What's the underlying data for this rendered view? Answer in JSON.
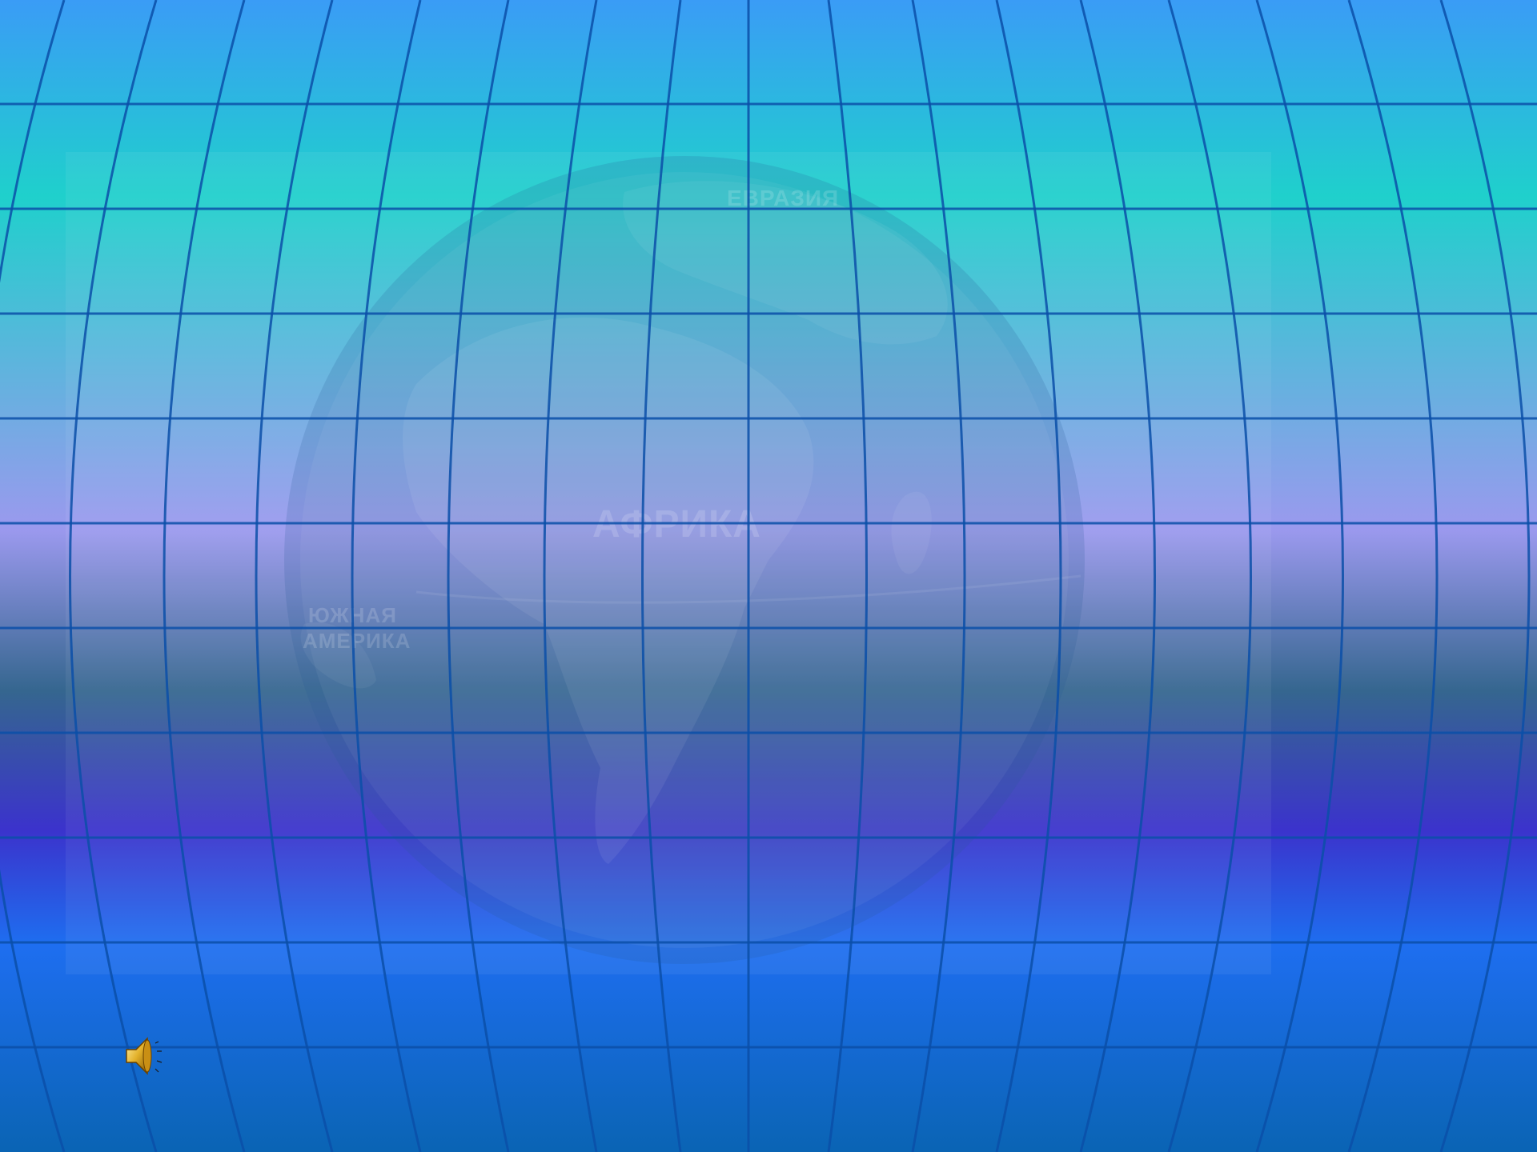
{
  "slide": {
    "labels": {
      "eurasia": "ЕВРАЗИЯ",
      "africa": "АФРИКА",
      "south_america_line1": "ЮЖНАЯ",
      "south_america_line2": "АМЕРИКА"
    },
    "audio_icon": "speaker-icon"
  },
  "colors": {
    "top": "#3a9cf6",
    "teal": "#1fd0cc",
    "lavender": "#9b99ee",
    "slate": "#35668f",
    "indigo": "#3b33cc",
    "blue": "#1e6ef0",
    "bottom": "#0a64b4",
    "grid_line": "#0a4fa8"
  }
}
